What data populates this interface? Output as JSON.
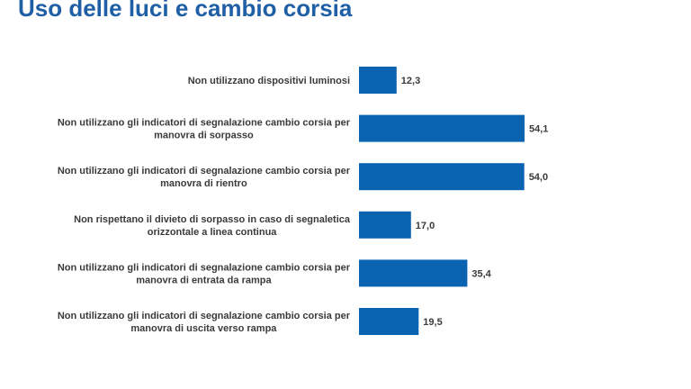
{
  "page": {
    "title": "Uso delle luci e cambio corsia"
  },
  "chart_data": {
    "type": "bar",
    "orientation": "horizontal",
    "title": "",
    "xlabel": "",
    "ylabel": "",
    "xlim": [
      0,
      60
    ],
    "grid": false,
    "legend": "none",
    "bar_color": "#0a63b0",
    "value_format": "comma-decimal",
    "categories": [
      [
        "Non utilizzano dispositivi luminosi"
      ],
      [
        "Non utilizzano gli indicatori di segnalazione cambio corsia per",
        "manovra di sorpasso"
      ],
      [
        "Non utilizzano gli indicatori di segnalazione cambio corsia per",
        "manovra di rientro"
      ],
      [
        "Non rispettano il divieto di sorpasso in caso di segnaletica",
        "orizzontale a linea continua"
      ],
      [
        "Non utilizzano gli indicatori di segnalazione cambio corsia per",
        "manovra di entrata da rampa"
      ],
      [
        "Non utilizzano gli indicatori di segnalazione cambio corsia per",
        "manovra di uscita verso rampa"
      ]
    ],
    "values": [
      12.3,
      54.1,
      54.0,
      17.0,
      35.4,
      19.5
    ],
    "value_labels": [
      "12,3",
      "54,1",
      "54,0",
      "17,0",
      "35,4",
      "19,5"
    ]
  }
}
